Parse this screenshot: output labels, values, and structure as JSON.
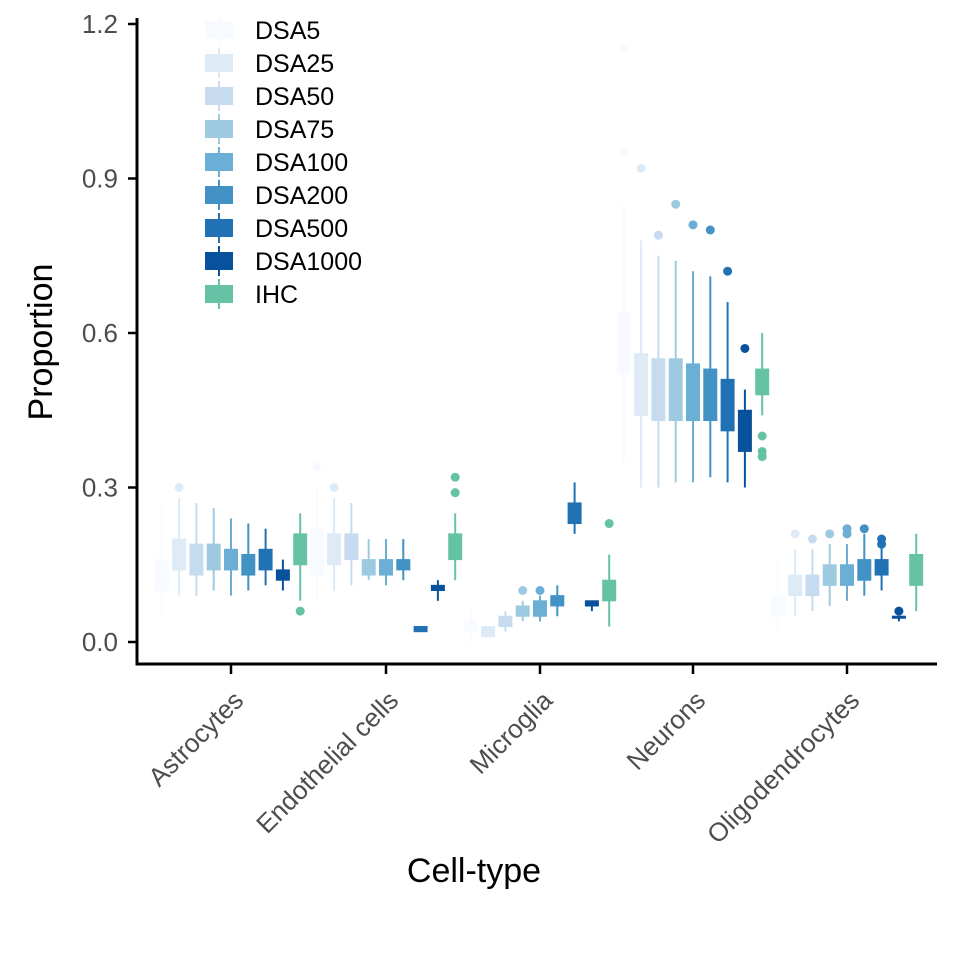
{
  "chart_data": {
    "type": "boxplot",
    "title": "",
    "xlabel": "Cell-type",
    "ylabel": "Proportion",
    "ylim": [
      -0.05,
      1.2
    ],
    "yticks": [
      0.0,
      0.3,
      0.6,
      0.9,
      1.2
    ],
    "ytick_labels": [
      "0.0",
      "0.3",
      "0.6",
      "0.9",
      "1.2"
    ],
    "grid": false,
    "legend_position": "top-left",
    "categories": [
      "Astrocytes",
      "Endothelial cells",
      "Microglia",
      "Neurons",
      "Oligodendrocytes"
    ],
    "series": [
      {
        "name": "DSA5",
        "color": "#f7fbff",
        "boxes": [
          {
            "lower": 0.05,
            "q1": 0.1,
            "median": 0.14,
            "q3": 0.16,
            "upper": 0.26,
            "outliers": []
          },
          {
            "lower": 0.08,
            "q1": 0.13,
            "median": 0.18,
            "q3": 0.22,
            "upper": 0.3,
            "outliers": [
              0.34
            ]
          },
          {
            "lower": 0.0,
            "q1": 0.02,
            "median": 0.03,
            "q3": 0.04,
            "upper": 0.06,
            "outliers": []
          },
          {
            "lower": 0.35,
            "q1": 0.52,
            "median": 0.56,
            "q3": 0.64,
            "upper": 0.85,
            "outliers": [
              0.95,
              1.15
            ]
          },
          {
            "lower": 0.02,
            "q1": 0.05,
            "median": 0.07,
            "q3": 0.09,
            "upper": 0.16,
            "outliers": []
          }
        ]
      },
      {
        "name": "DSA25",
        "color": "#deebf7",
        "boxes": [
          {
            "lower": 0.09,
            "q1": 0.14,
            "median": 0.17,
            "q3": 0.2,
            "upper": 0.28,
            "outliers": [
              0.3
            ]
          },
          {
            "lower": 0.1,
            "q1": 0.15,
            "median": 0.19,
            "q3": 0.21,
            "upper": 0.28,
            "outliers": [
              0.3
            ]
          },
          {
            "lower": 0.01,
            "q1": 0.01,
            "median": 0.02,
            "q3": 0.03,
            "upper": 0.03,
            "outliers": []
          },
          {
            "lower": 0.3,
            "q1": 0.44,
            "median": 0.5,
            "q3": 0.56,
            "upper": 0.78,
            "outliers": [
              0.92
            ]
          },
          {
            "lower": 0.05,
            "q1": 0.09,
            "median": 0.11,
            "q3": 0.13,
            "upper": 0.18,
            "outliers": [
              0.21
            ]
          }
        ]
      },
      {
        "name": "DSA50",
        "color": "#c6dbef",
        "boxes": [
          {
            "lower": 0.09,
            "q1": 0.13,
            "median": 0.16,
            "q3": 0.19,
            "upper": 0.27,
            "outliers": []
          },
          {
            "lower": 0.11,
            "q1": 0.16,
            "median": 0.18,
            "q3": 0.21,
            "upper": 0.27,
            "outliers": []
          },
          {
            "lower": 0.02,
            "q1": 0.03,
            "median": 0.04,
            "q3": 0.05,
            "upper": 0.06,
            "outliers": []
          },
          {
            "lower": 0.3,
            "q1": 0.43,
            "median": 0.5,
            "q3": 0.55,
            "upper": 0.75,
            "outliers": [
              0.79
            ]
          },
          {
            "lower": 0.06,
            "q1": 0.09,
            "median": 0.11,
            "q3": 0.13,
            "upper": 0.18,
            "outliers": [
              0.2
            ]
          }
        ]
      },
      {
        "name": "DSA75",
        "color": "#9ecae1",
        "boxes": [
          {
            "lower": 0.1,
            "q1": 0.14,
            "median": 0.17,
            "q3": 0.19,
            "upper": 0.26,
            "outliers": []
          },
          {
            "lower": 0.12,
            "q1": 0.13,
            "median": 0.14,
            "q3": 0.16,
            "upper": 0.2,
            "outliers": []
          },
          {
            "lower": 0.04,
            "q1": 0.05,
            "median": 0.06,
            "q3": 0.07,
            "upper": 0.08,
            "outliers": [
              0.1
            ]
          },
          {
            "lower": 0.31,
            "q1": 0.43,
            "median": 0.49,
            "q3": 0.55,
            "upper": 0.74,
            "outliers": [
              0.85
            ]
          },
          {
            "lower": 0.07,
            "q1": 0.11,
            "median": 0.13,
            "q3": 0.15,
            "upper": 0.19,
            "outliers": [
              0.21
            ]
          }
        ]
      },
      {
        "name": "DSA100",
        "color": "#6baed6",
        "boxes": [
          {
            "lower": 0.09,
            "q1": 0.14,
            "median": 0.16,
            "q3": 0.18,
            "upper": 0.24,
            "outliers": []
          },
          {
            "lower": 0.11,
            "q1": 0.13,
            "median": 0.14,
            "q3": 0.16,
            "upper": 0.2,
            "outliers": []
          },
          {
            "lower": 0.04,
            "q1": 0.05,
            "median": 0.06,
            "q3": 0.08,
            "upper": 0.09,
            "outliers": [
              0.1
            ]
          },
          {
            "lower": 0.31,
            "q1": 0.43,
            "median": 0.49,
            "q3": 0.54,
            "upper": 0.72,
            "outliers": [
              0.81
            ]
          },
          {
            "lower": 0.08,
            "q1": 0.11,
            "median": 0.13,
            "q3": 0.15,
            "upper": 0.19,
            "outliers": [
              0.21,
              0.22
            ]
          }
        ]
      },
      {
        "name": "DSA200",
        "color": "#4292c6",
        "boxes": [
          {
            "lower": 0.1,
            "q1": 0.13,
            "median": 0.15,
            "q3": 0.17,
            "upper": 0.23,
            "outliers": []
          },
          {
            "lower": 0.12,
            "q1": 0.14,
            "median": 0.15,
            "q3": 0.16,
            "upper": 0.2,
            "outliers": []
          },
          {
            "lower": 0.05,
            "q1": 0.07,
            "median": 0.08,
            "q3": 0.09,
            "upper": 0.11,
            "outliers": []
          },
          {
            "lower": 0.32,
            "q1": 0.43,
            "median": 0.47,
            "q3": 0.53,
            "upper": 0.71,
            "outliers": [
              0.8
            ]
          },
          {
            "lower": 0.09,
            "q1": 0.12,
            "median": 0.14,
            "q3": 0.16,
            "upper": 0.21,
            "outliers": [
              0.22
            ]
          }
        ]
      },
      {
        "name": "DSA500",
        "color": "#2171b5",
        "boxes": [
          {
            "lower": 0.11,
            "q1": 0.14,
            "median": 0.16,
            "q3": 0.18,
            "upper": 0.22,
            "outliers": []
          },
          {
            "lower": 0.02,
            "q1": 0.02,
            "median": 0.03,
            "q3": 0.03,
            "upper": 0.03,
            "outliers": []
          },
          {
            "lower": 0.21,
            "q1": 0.23,
            "median": 0.25,
            "q3": 0.27,
            "upper": 0.31,
            "outliers": []
          },
          {
            "lower": 0.31,
            "q1": 0.41,
            "median": 0.45,
            "q3": 0.51,
            "upper": 0.66,
            "outliers": [
              0.72
            ]
          },
          {
            "lower": 0.1,
            "q1": 0.13,
            "median": 0.14,
            "q3": 0.16,
            "upper": 0.19,
            "outliers": [
              0.19,
              0.2
            ]
          }
        ]
      },
      {
        "name": "DSA1000",
        "color": "#08519c",
        "boxes": [
          {
            "lower": 0.1,
            "q1": 0.12,
            "median": 0.13,
            "q3": 0.14,
            "upper": 0.16,
            "outliers": []
          },
          {
            "lower": 0.08,
            "q1": 0.1,
            "median": 0.1,
            "q3": 0.11,
            "upper": 0.12,
            "outliers": []
          },
          {
            "lower": 0.06,
            "q1": 0.07,
            "median": 0.07,
            "q3": 0.08,
            "upper": 0.08,
            "outliers": []
          },
          {
            "lower": 0.3,
            "q1": 0.37,
            "median": 0.41,
            "q3": 0.45,
            "upper": 0.49,
            "outliers": [
              0.57
            ]
          },
          {
            "lower": 0.04,
            "q1": 0.05,
            "median": 0.05,
            "q3": 0.05,
            "upper": 0.05,
            "outliers": [
              0.06
            ]
          }
        ]
      },
      {
        "name": "IHC",
        "color": "#66c2a5",
        "boxes": [
          {
            "lower": 0.08,
            "q1": 0.15,
            "median": 0.18,
            "q3": 0.21,
            "upper": 0.25,
            "outliers": [
              0.06
            ]
          },
          {
            "lower": 0.12,
            "q1": 0.16,
            "median": 0.18,
            "q3": 0.21,
            "upper": 0.25,
            "outliers": [
              0.29,
              0.32
            ]
          },
          {
            "lower": 0.03,
            "q1": 0.08,
            "median": 0.09,
            "q3": 0.12,
            "upper": 0.17,
            "outliers": [
              0.23
            ]
          },
          {
            "lower": 0.44,
            "q1": 0.48,
            "median": 0.5,
            "q3": 0.53,
            "upper": 0.6,
            "outliers": [
              0.36,
              0.37,
              0.4
            ]
          },
          {
            "lower": 0.06,
            "q1": 0.11,
            "median": 0.13,
            "q3": 0.17,
            "upper": 0.21,
            "outliers": []
          }
        ]
      }
    ],
    "extra_outliers": [
      {
        "series": 6,
        "category": 3,
        "value": 0.65,
        "note": ""
      },
      {
        "series": 7,
        "category": 3,
        "value": 0.65,
        "note": ""
      }
    ]
  }
}
